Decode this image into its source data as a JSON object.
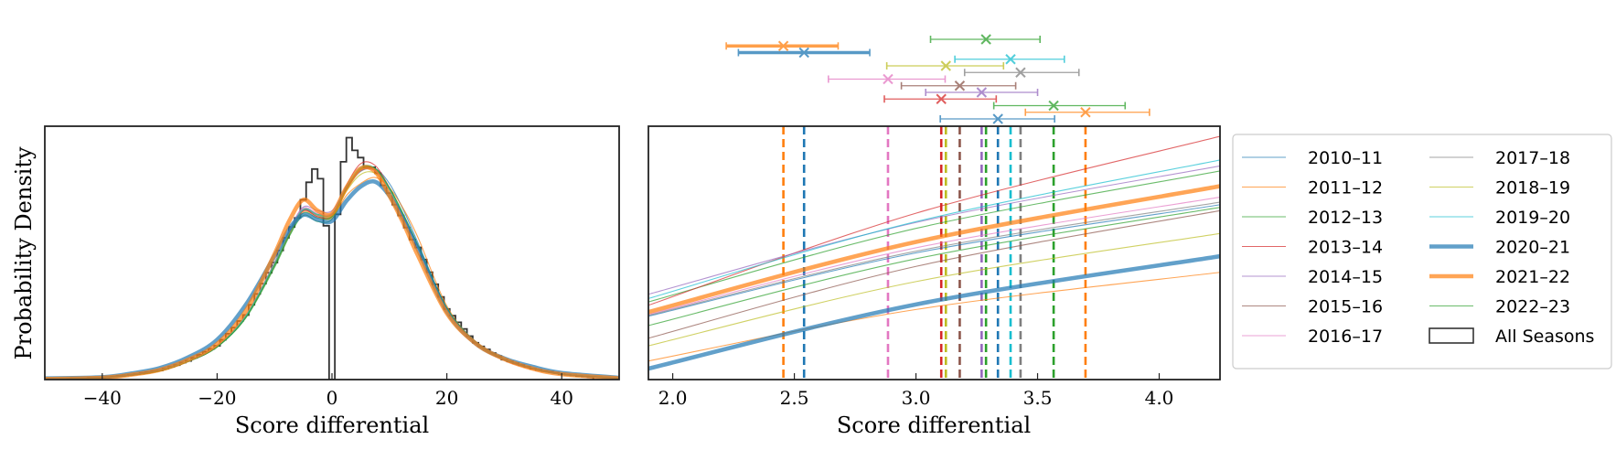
{
  "chart_data": [
    {
      "type": "line",
      "panel": "left",
      "xlabel": "Score differential",
      "ylabel": "Probability Density",
      "xlim": [
        -50,
        50
      ],
      "ylim": [
        0,
        0.042
      ],
      "xticks": [
        -40,
        -20,
        0,
        20,
        40
      ],
      "xtick_labels": [
        "−40",
        "−20",
        "0",
        "20",
        "40"
      ],
      "yticks": [],
      "grid": false,
      "x": [
        -50,
        -40,
        -35,
        -30,
        -25,
        -20,
        -15,
        -10,
        -7.5,
        -5,
        -2.5,
        0,
        2.5,
        5,
        7.5,
        10,
        12.5,
        15,
        20,
        25,
        30,
        35,
        40,
        50
      ],
      "series": [
        {
          "name": "2010–11",
          "color": "#1f77b4",
          "thick": false,
          "values": [
            0.0001,
            0.0003,
            0.0008,
            0.0015,
            0.003,
            0.0054,
            0.0104,
            0.019,
            0.0241,
            0.028,
            0.0272,
            0.027,
            0.0318,
            0.0346,
            0.035,
            0.0325,
            0.028,
            0.0226,
            0.0118,
            0.0061,
            0.0033,
            0.0018,
            0.0009,
            0.0002
          ]
        },
        {
          "name": "2011–12",
          "color": "#ff7f0e",
          "thick": false,
          "values": [
            0.0001,
            0.0003,
            0.0008,
            0.0015,
            0.0031,
            0.0055,
            0.0105,
            0.019,
            0.024,
            0.0278,
            0.027,
            0.0268,
            0.0305,
            0.0325,
            0.0335,
            0.0318,
            0.0282,
            0.0235,
            0.0122,
            0.0062,
            0.0033,
            0.0018,
            0.0009,
            0.0002
          ]
        },
        {
          "name": "2012–13",
          "color": "#2ca02c",
          "thick": false,
          "values": [
            0.0001,
            0.0003,
            0.0007,
            0.0014,
            0.003,
            0.0054,
            0.0102,
            0.0186,
            0.0236,
            0.0272,
            0.0262,
            0.0266,
            0.0314,
            0.0348,
            0.035,
            0.0318,
            0.0273,
            0.0222,
            0.0119,
            0.0063,
            0.0034,
            0.0018,
            0.0009,
            0.0002
          ]
        },
        {
          "name": "2013–14",
          "color": "#d62728",
          "thick": false,
          "values": [
            0.0001,
            0.0003,
            0.0007,
            0.0014,
            0.003,
            0.0055,
            0.0105,
            0.0192,
            0.0243,
            0.028,
            0.027,
            0.0272,
            0.0322,
            0.0358,
            0.0355,
            0.0318,
            0.027,
            0.0218,
            0.0116,
            0.006,
            0.0032,
            0.0017,
            0.0009,
            0.0002
          ]
        },
        {
          "name": "2014–15",
          "color": "#9467bd",
          "thick": false,
          "values": [
            0.0001,
            0.0003,
            0.0008,
            0.0015,
            0.0031,
            0.0056,
            0.0106,
            0.0193,
            0.0246,
            0.0286,
            0.028,
            0.028,
            0.0318,
            0.0346,
            0.0346,
            0.0314,
            0.0268,
            0.0218,
            0.0117,
            0.0061,
            0.0033,
            0.0018,
            0.0009,
            0.0002
          ]
        },
        {
          "name": "2015–16",
          "color": "#8c564b",
          "thick": false,
          "values": [
            0.0001,
            0.0003,
            0.0008,
            0.0015,
            0.0031,
            0.0056,
            0.0106,
            0.0193,
            0.0244,
            0.0282,
            0.0274,
            0.0274,
            0.0317,
            0.0347,
            0.0348,
            0.0316,
            0.027,
            0.0219,
            0.0117,
            0.0061,
            0.0033,
            0.0018,
            0.0009,
            0.0002
          ]
        },
        {
          "name": "2016–17",
          "color": "#e377c2",
          "thick": false,
          "values": [
            0.0001,
            0.0003,
            0.0008,
            0.0015,
            0.0031,
            0.0057,
            0.0107,
            0.0195,
            0.0246,
            0.0284,
            0.0276,
            0.0276,
            0.0316,
            0.0347,
            0.0346,
            0.0314,
            0.0268,
            0.0218,
            0.0117,
            0.0061,
            0.0033,
            0.0018,
            0.0009,
            0.0002
          ]
        },
        {
          "name": "2017–18",
          "color": "#7f7f7f",
          "thick": false,
          "values": [
            0.0001,
            0.0003,
            0.0008,
            0.0015,
            0.003,
            0.0055,
            0.0104,
            0.019,
            0.0242,
            0.0281,
            0.0273,
            0.0272,
            0.0315,
            0.0345,
            0.0347,
            0.0316,
            0.0271,
            0.022,
            0.0118,
            0.0061,
            0.0033,
            0.0018,
            0.0009,
            0.0002
          ]
        },
        {
          "name": "2018–19",
          "color": "#bcbd22",
          "thick": false,
          "values": [
            0.0001,
            0.0003,
            0.0008,
            0.0015,
            0.0031,
            0.0056,
            0.0106,
            0.0193,
            0.0244,
            0.0282,
            0.0273,
            0.0271,
            0.0312,
            0.034,
            0.0342,
            0.0314,
            0.0271,
            0.0221,
            0.0118,
            0.0061,
            0.0033,
            0.0018,
            0.0009,
            0.0002
          ]
        },
        {
          "name": "2019–20",
          "color": "#17becf",
          "thick": false,
          "values": [
            0.0001,
            0.0003,
            0.0008,
            0.0015,
            0.0031,
            0.0055,
            0.0105,
            0.0192,
            0.0244,
            0.0282,
            0.0274,
            0.0275,
            0.032,
            0.0352,
            0.035,
            0.0316,
            0.027,
            0.022,
            0.0117,
            0.0061,
            0.0033,
            0.0018,
            0.0009,
            0.0002
          ]
        },
        {
          "name": "2020–21",
          "color": "#1f77b4",
          "thick": true,
          "values": [
            0.0002,
            0.0004,
            0.001,
            0.0019,
            0.0037,
            0.0066,
            0.0124,
            0.0205,
            0.0249,
            0.0273,
            0.0265,
            0.0263,
            0.0296,
            0.032,
            0.0328,
            0.0305,
            0.0264,
            0.0215,
            0.0113,
            0.006,
            0.0035,
            0.0021,
            0.0011,
            0.0003
          ]
        },
        {
          "name": "2021–22",
          "color": "#ff7f0e",
          "thick": true,
          "values": [
            0.0001,
            0.0003,
            0.0008,
            0.0016,
            0.0033,
            0.0059,
            0.0114,
            0.0208,
            0.0262,
            0.0298,
            0.028,
            0.0275,
            0.0318,
            0.035,
            0.0345,
            0.0305,
            0.0258,
            0.0205,
            0.011,
            0.006,
            0.0034,
            0.0018,
            0.0009,
            0.0002
          ]
        },
        {
          "name": "2022–23",
          "color": "#2ca02c",
          "thick": false,
          "values": [
            0.0001,
            0.0003,
            0.0007,
            0.0014,
            0.003,
            0.0054,
            0.0103,
            0.0189,
            0.0238,
            0.0276,
            0.0268,
            0.027,
            0.0316,
            0.035,
            0.035,
            0.0318,
            0.0272,
            0.0222,
            0.0119,
            0.0062,
            0.0034,
            0.0018,
            0.0009,
            0.0002
          ]
        }
      ],
      "histogram": {
        "name": "All Seasons",
        "color": "#333333",
        "bin_start": -45.5,
        "bin_width": 1,
        "values": [
          0.0002,
          0.0002,
          0.0002,
          0.0003,
          0.0003,
          0.0003,
          0.0004,
          0.0005,
          0.0006,
          0.0007,
          0.0008,
          0.0009,
          0.0011,
          0.0012,
          0.0014,
          0.0015,
          0.0018,
          0.0021,
          0.0024,
          0.0028,
          0.0031,
          0.0036,
          0.0041,
          0.0046,
          0.0051,
          0.0056,
          0.0066,
          0.0076,
          0.0086,
          0.0097,
          0.0107,
          0.0124,
          0.0142,
          0.0159,
          0.0177,
          0.0194,
          0.0214,
          0.0235,
          0.0253,
          0.0268,
          0.0298,
          0.0327,
          0.0349,
          0.0333,
          0.0255,
          0,
          0.0274,
          0.0361,
          0.0401,
          0.038,
          0.0368,
          0.0352,
          0.0352,
          0.0342,
          0.0322,
          0.0309,
          0.029,
          0.0272,
          0.0252,
          0.0232,
          0.0219,
          0.0199,
          0.0178,
          0.0158,
          0.0137,
          0.0117,
          0.0106,
          0.0095,
          0.0084,
          0.0072,
          0.0061,
          0.0055,
          0.005,
          0.0044,
          0.0039,
          0.0033,
          0.003,
          0.0027,
          0.0024,
          0.0021,
          0.0018,
          0.0016,
          0.0014,
          0.0013,
          0.0011,
          0.0009,
          0.0008,
          0.0007,
          0.0006,
          0.0005,
          0.0004
        ]
      }
    },
    {
      "type": "line",
      "panel": "right",
      "xlabel": "Score differential",
      "xlim": [
        1.9,
        4.25
      ],
      "ylim": [
        0.03,
        0.033
      ],
      "xticks": [
        2.0,
        2.5,
        3.0,
        3.5,
        4.0
      ],
      "xtick_labels": [
        "2.0",
        "2.5",
        "3.0",
        "3.5",
        "4.0"
      ],
      "yticks": [],
      "grid": false,
      "x": [
        1.9,
        3.0,
        4.25
      ],
      "series": [
        {
          "name": "2010–11",
          "color": "#1f77b4",
          "thick": false,
          "values": [
            0.03075,
            0.0315,
            0.03207
          ],
          "mean": 3.337,
          "ci": [
            3.1,
            3.57
          ]
        },
        {
          "name": "2011–12",
          "color": "#ff7f0e",
          "thick": false,
          "values": [
            0.03022,
            0.03083,
            0.03127
          ],
          "mean": 3.697,
          "ci": [
            3.45,
            3.96
          ]
        },
        {
          "name": "2012–13",
          "color": "#2ca02c",
          "thick": false,
          "values": [
            0.03092,
            0.03179,
            0.03247
          ],
          "mean": 3.566,
          "ci": [
            3.32,
            3.86
          ]
        },
        {
          "name": "2013–14",
          "color": "#d62728",
          "thick": false,
          "values": [
            0.03088,
            0.03197,
            0.03288
          ],
          "mean": 3.104,
          "ci": [
            2.87,
            3.33
          ]
        },
        {
          "name": "2014–15",
          "color": "#9467bd",
          "thick": false,
          "values": [
            0.03101,
            0.03186,
            0.03253
          ],
          "mean": 3.27,
          "ci": [
            3.04,
            3.5
          ]
        },
        {
          "name": "2015–16",
          "color": "#8c564b",
          "thick": false,
          "values": [
            0.03049,
            0.03134,
            0.032
          ],
          "mean": 3.18,
          "ci": [
            2.94,
            3.41
          ]
        },
        {
          "name": "2016–17",
          "color": "#e377c2",
          "thick": false,
          "values": [
            0.03077,
            0.03156,
            0.03216
          ],
          "mean": 2.885,
          "ci": [
            2.64,
            3.12
          ]
        },
        {
          "name": "2017–18",
          "color": "#7f7f7f",
          "thick": false,
          "values": [
            0.03076,
            0.03152,
            0.0321
          ],
          "mean": 3.43,
          "ci": [
            3.2,
            3.67
          ]
        },
        {
          "name": "2018–19",
          "color": "#bcbd22",
          "thick": false,
          "values": [
            0.0304,
            0.03116,
            0.03173
          ],
          "mean": 3.123,
          "ci": [
            2.88,
            3.36
          ]
        },
        {
          "name": "2019–20",
          "color": "#17becf",
          "thick": false,
          "values": [
            0.03096,
            0.03187,
            0.0326
          ],
          "mean": 3.389,
          "ci": [
            3.16,
            3.61
          ]
        },
        {
          "name": "2020–21",
          "color": "#1f77b4",
          "thick": true,
          "values": [
            0.03013,
            0.03089,
            0.03146
          ],
          "mean": 2.54,
          "ci": [
            2.27,
            2.81
          ]
        },
        {
          "name": "2021–22",
          "color": "#ff7f0e",
          "thick": true,
          "values": [
            0.0308,
            0.03163,
            0.03229
          ],
          "mean": 2.455,
          "ci": [
            2.22,
            2.68
          ]
        },
        {
          "name": "2022–23",
          "color": "#2ca02c",
          "thick": false,
          "values": [
            0.03064,
            0.03143,
            0.03204
          ],
          "mean": 3.288,
          "ci": [
            3.06,
            3.51
          ]
        }
      ]
    }
  ],
  "legend": {
    "placement": "right",
    "columns": 2,
    "histogram_label": "All Seasons"
  }
}
